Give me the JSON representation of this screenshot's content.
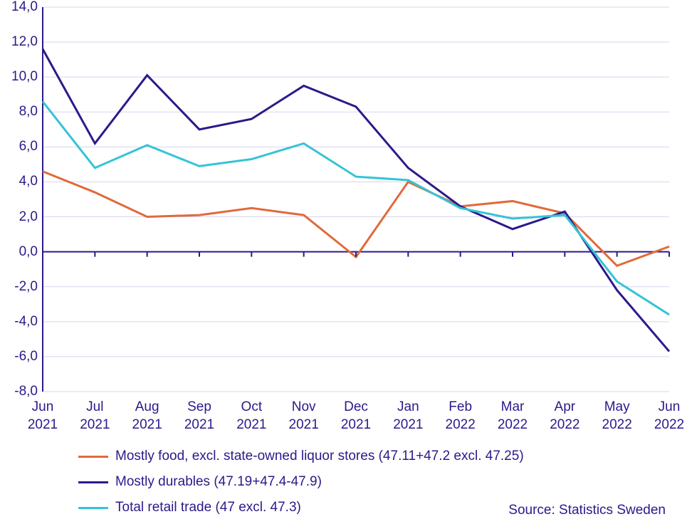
{
  "chart": {
    "type": "line",
    "background_color": "#ffffff",
    "grid_color": "#d9d4ee",
    "axis_color": "#2a1a8a",
    "text_color": "#2a1a8a",
    "font_size": 19,
    "line_width": 3,
    "ylim": [
      -8,
      14
    ],
    "ytick_step": 2,
    "y_ticks": [
      "14,0",
      "12,0",
      "10,0",
      "8,0",
      "6,0",
      "4,0",
      "2,0",
      "0,0",
      "-2,0",
      "-4,0",
      "-6,0",
      "-8,0"
    ],
    "y_values": [
      14,
      12,
      10,
      8,
      6,
      4,
      2,
      0,
      -2,
      -4,
      -6,
      -8
    ],
    "categories": [
      {
        "l1": "Jun",
        "l2": "2021"
      },
      {
        "l1": "Jul",
        "l2": "2021"
      },
      {
        "l1": "Aug",
        "l2": "2021"
      },
      {
        "l1": "Sep",
        "l2": "2021"
      },
      {
        "l1": "Oct",
        "l2": "2021"
      },
      {
        "l1": "Nov",
        "l2": "2021"
      },
      {
        "l1": "Dec",
        "l2": "2021"
      },
      {
        "l1": "Jan",
        "l2": "2021"
      },
      {
        "l1": "Feb",
        "l2": "2022"
      },
      {
        "l1": "Mar",
        "l2": "2022"
      },
      {
        "l1": "Apr",
        "l2": "2022"
      },
      {
        "l1": "May",
        "l2": "2022"
      },
      {
        "l1": "Jun",
        "l2": "2022"
      }
    ],
    "series": [
      {
        "name": "Mostly food, excl. state-owned liquor stores (47.11+47.2 excl. 47.25)",
        "color": "#e06a3b",
        "values": [
          4.6,
          3.4,
          2.0,
          2.1,
          2.5,
          2.1,
          -0.3,
          4.0,
          2.6,
          2.9,
          2.2,
          -0.8,
          0.3
        ]
      },
      {
        "name": "Mostly durables (47.19+47.4-47.9)",
        "color": "#2a1a8a",
        "values": [
          11.6,
          6.2,
          10.1,
          7.0,
          7.6,
          9.5,
          8.3,
          4.8,
          2.6,
          1.3,
          2.3,
          -2.2,
          -5.7
        ]
      },
      {
        "name": "Total retail trade (47 excl. 47.3)",
        "color": "#35c3d6",
        "values": [
          8.6,
          4.8,
          6.1,
          4.9,
          5.3,
          6.2,
          4.3,
          4.1,
          2.5,
          1.9,
          2.1,
          -1.7,
          -3.6
        ]
      }
    ]
  },
  "legend": {
    "items": [
      "Mostly food, excl. state-owned liquor stores (47.11+47.2 excl. 47.25)",
      "Mostly durables (47.19+47.4-47.9)",
      "Total retail trade (47 excl. 47.3)"
    ]
  },
  "source": "Source: Statistics Sweden"
}
